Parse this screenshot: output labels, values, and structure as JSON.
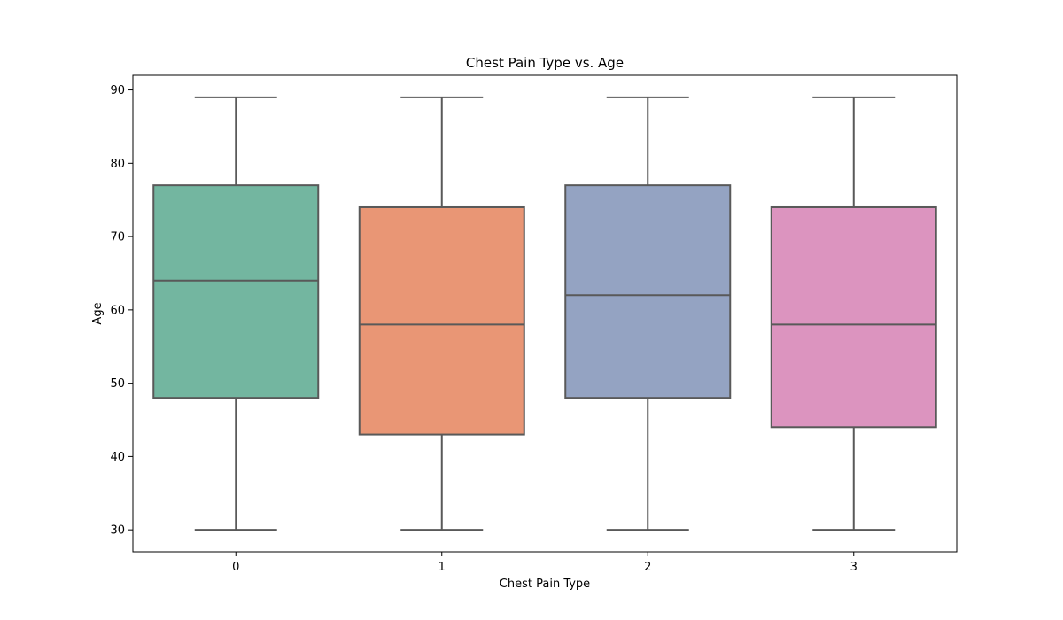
{
  "chart_data": {
    "type": "box",
    "title": "Chest Pain Type vs. Age",
    "xlabel": "Chest Pain Type",
    "ylabel": "Age",
    "ylim": [
      27,
      92
    ],
    "yticks": [
      30,
      40,
      50,
      60,
      70,
      80,
      90
    ],
    "categories": [
      "0",
      "1",
      "2",
      "3"
    ],
    "boxes": [
      {
        "category": "0",
        "min": 30,
        "q1": 48,
        "median": 64,
        "q3": 77,
        "max": 89,
        "color": "#73b6a0"
      },
      {
        "category": "1",
        "min": 30,
        "q1": 43,
        "median": 58,
        "q3": 74,
        "max": 89,
        "color": "#e99675"
      },
      {
        "category": "2",
        "min": 30,
        "q1": 48,
        "median": 62,
        "q3": 77,
        "max": 89,
        "color": "#94a3c2"
      },
      {
        "category": "3",
        "min": 30,
        "q1": 44,
        "median": 58,
        "q3": 74,
        "max": 89,
        "color": "#dc94bf"
      }
    ],
    "grid": false,
    "legend": "none"
  }
}
